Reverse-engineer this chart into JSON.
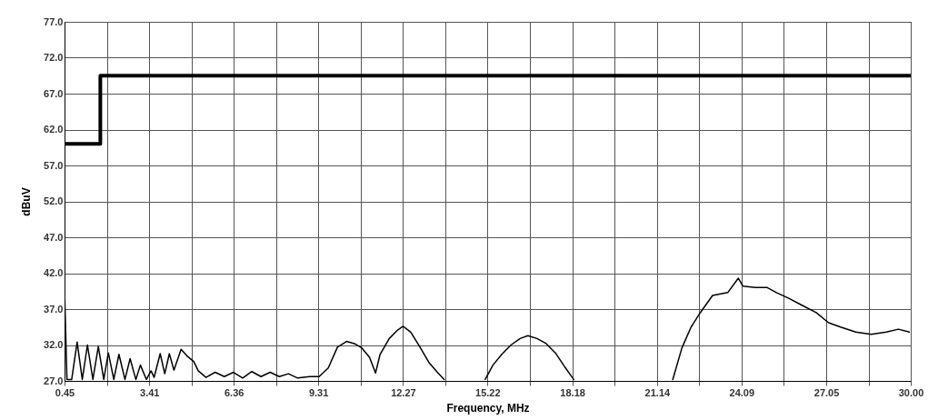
{
  "chart_data": {
    "type": "line",
    "xlabel": "Frequency, MHz",
    "ylabel": "dBuV",
    "xlim": [
      0.45,
      30.0
    ],
    "ylim": [
      27,
      77
    ],
    "xticks": [
      0.45,
      {
        "value": 1.93,
        "label": null
      },
      3.41,
      {
        "value": 4.89,
        "label": null
      },
      6.36,
      {
        "value": 7.84,
        "label": null
      },
      9.31,
      {
        "value": 10.79,
        "label": null
      },
      12.27,
      {
        "value": 13.75,
        "label": null
      },
      15.22,
      {
        "value": 16.7,
        "label": null
      },
      18.18,
      {
        "value": 19.66,
        "label": null
      },
      21.14,
      {
        "value": 22.62,
        "label": null
      },
      24.09,
      {
        "value": 25.57,
        "label": null
      },
      27.05,
      {
        "value": 28.53,
        "label": null
      },
      {
        "value": 30.0,
        "label": "30.00"
      }
    ],
    "yticks": [
      {
        "value": 27,
        "label": "27.0"
      },
      {
        "value": 32,
        "label": "32.0"
      },
      {
        "value": 37,
        "label": "37.0"
      },
      {
        "value": 42,
        "label": "42.0"
      },
      {
        "value": 47,
        "label": "47.0"
      },
      {
        "value": 52,
        "label": "52.0"
      },
      {
        "value": 57,
        "label": "57.0"
      },
      {
        "value": 62,
        "label": "62.0"
      },
      {
        "value": 67,
        "label": "67.0"
      },
      {
        "value": 72,
        "label": "72.0"
      },
      {
        "value": 77,
        "label": "77.0"
      }
    ],
    "grid": true,
    "series": [
      {
        "type": "step",
        "color": "#000000",
        "x": [
          0.45,
          1.7,
          30.0
        ],
        "values": [
          60.0,
          69.5,
          69.5
        ]
      },
      {
        "type": "line",
        "color": "#000000",
        "x": [
          0.45,
          0.535,
          0.7,
          0.89,
          1.07,
          1.25,
          1.44,
          1.63,
          1.82,
          1.98,
          2.17,
          2.35,
          2.56,
          2.74,
          2.94,
          3.1,
          3.31,
          3.47,
          3.58,
          3.79,
          3.95,
          4.11,
          4.27,
          4.52,
          4.75,
          4.96,
          5.12,
          5.39,
          5.71,
          6.03,
          6.35,
          6.67,
          6.99,
          7.31,
          7.63,
          7.95,
          8.27,
          8.59,
          9.02,
          9.34,
          9.66,
          9.98,
          10.3,
          10.57,
          10.83,
          11.1,
          11.31,
          11.47,
          11.79,
          12.06,
          12.27,
          12.54,
          12.85,
          13.17,
          13.49,
          13.71,
          14.4,
          15.14,
          15.41,
          15.72,
          16.04,
          16.36,
          16.63,
          16.95,
          17.27,
          17.59,
          17.91,
          18.23,
          20.0,
          21.69,
          22.01,
          22.33,
          22.65,
          23.08,
          23.61,
          23.98,
          24.14,
          24.57,
          24.99,
          25.31,
          25.74,
          26.17,
          26.7,
          27.13,
          27.55,
          28.08,
          28.62,
          29.15,
          29.57,
          29.95
        ],
        "values": [
          39.7,
          27.2,
          27.2,
          32.4,
          27.2,
          32.0,
          27.2,
          31.8,
          27.2,
          30.9,
          27.2,
          30.7,
          27.2,
          30.1,
          27.2,
          29.2,
          27.2,
          28.4,
          27.5,
          30.8,
          28.0,
          30.8,
          28.5,
          31.4,
          30.4,
          29.7,
          28.4,
          27.5,
          28.2,
          27.6,
          28.2,
          27.4,
          28.3,
          27.6,
          28.2,
          27.6,
          28.0,
          27.4,
          27.6,
          27.6,
          28.8,
          31.7,
          32.5,
          32.2,
          31.6,
          30.3,
          28.1,
          30.7,
          32.9,
          34.0,
          34.6,
          33.8,
          31.8,
          29.6,
          28.1,
          27.2,
          null,
          27.2,
          29.2,
          30.7,
          32.0,
          32.9,
          33.3,
          32.9,
          32.2,
          30.9,
          29.0,
          27.2,
          null,
          27.2,
          31.6,
          34.5,
          36.5,
          38.9,
          39.3,
          41.3,
          40.2,
          40.0,
          40.0,
          39.3,
          38.5,
          37.6,
          36.5,
          35.1,
          34.5,
          33.8,
          33.5,
          33.8,
          34.2,
          33.8
        ]
      }
    ]
  }
}
